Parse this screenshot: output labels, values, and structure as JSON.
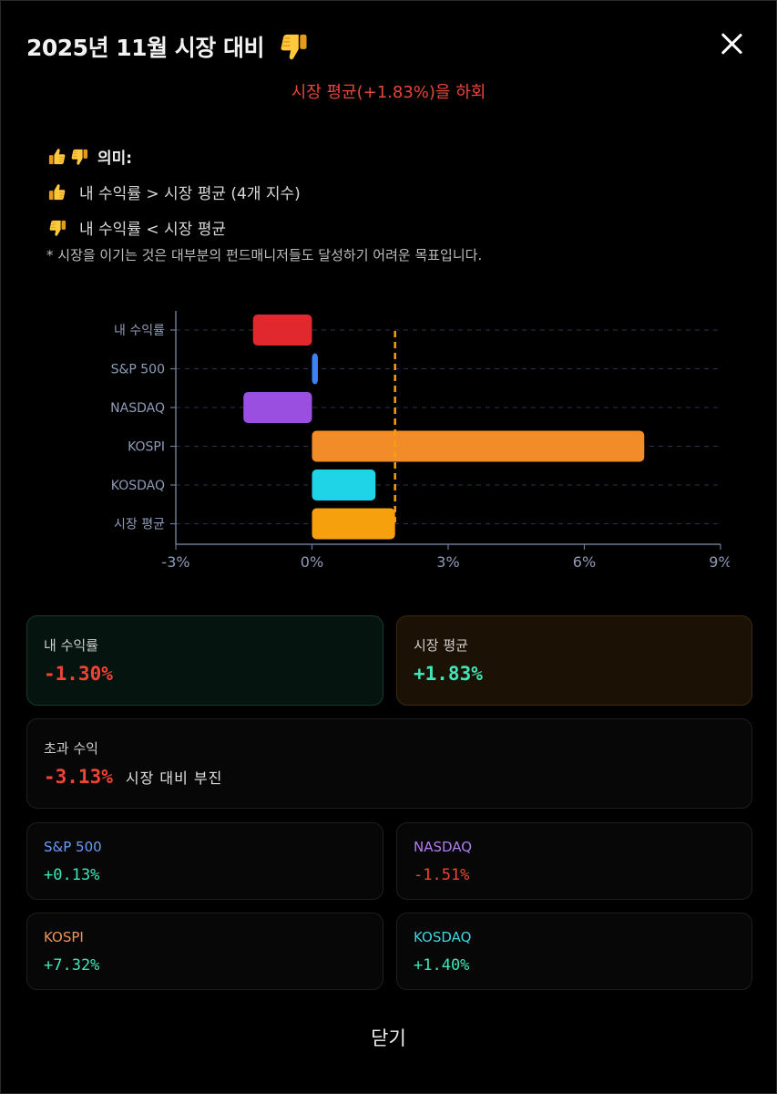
{
  "modal": {
    "title": "2025년 11월 시장 대비",
    "title_icon": "thumbs-down-icon",
    "subtitle": "시장 평균(+1.83%)을 하회",
    "close_button": "닫기"
  },
  "legend": {
    "heading": "의미:",
    "rows": [
      {
        "icon": "thumbs-up-icon",
        "text": "내 수익률 > 시장 평균 (4개 지수)"
      },
      {
        "icon": "thumbs-down-icon",
        "text": "내 수익률 < 시장 평균"
      }
    ],
    "note": "* 시장을 이기는 것은 대부분의 펀드매니저들도 달성하기 어려운 목표입니다."
  },
  "chart_data": {
    "type": "bar",
    "orientation": "horizontal",
    "categories": [
      "내 수익률",
      "S&P 500",
      "NASDAQ",
      "KOSPI",
      "KOSDAQ",
      "시장 평균"
    ],
    "values": [
      -1.3,
      0.13,
      -1.51,
      7.32,
      1.4,
      1.83
    ],
    "colors": [
      "#e0282e",
      "#3b82f6",
      "#9b4fe0",
      "#f28c28",
      "#1ed4e6",
      "#f5a00c"
    ],
    "xlim": [
      -3,
      9
    ],
    "xticks": [
      "-3%",
      "0%",
      "3%",
      "6%",
      "9%"
    ],
    "xtick_values": [
      -3,
      0,
      3,
      6,
      9
    ],
    "reference_line": {
      "value": 1.83,
      "color": "#f5a00c",
      "style": "dashed"
    },
    "grid": "horizontal dashed"
  },
  "cards": {
    "my_return": {
      "label": "내 수익률",
      "value": "-1.30%"
    },
    "market_avg": {
      "label": "시장 평균",
      "value": "+1.83%"
    },
    "excess": {
      "label": "초과 수익",
      "value": "-3.13%",
      "desc": "시장 대비 부진"
    },
    "indices": [
      {
        "label": "S&P 500",
        "value": "+0.13%",
        "label_color": "#6b9cf5",
        "value_color": "#3ee6b8"
      },
      {
        "label": "NASDAQ",
        "value": "-1.51%",
        "label_color": "#b07cf0",
        "value_color": "#ef4436"
      },
      {
        "label": "KOSPI",
        "value": "+7.32%",
        "label_color": "#f2935a",
        "value_color": "#3ee6b8"
      },
      {
        "label": "KOSDAQ",
        "value": "+1.40%",
        "label_color": "#3ed6e0",
        "value_color": "#3ee6b8"
      }
    ]
  }
}
